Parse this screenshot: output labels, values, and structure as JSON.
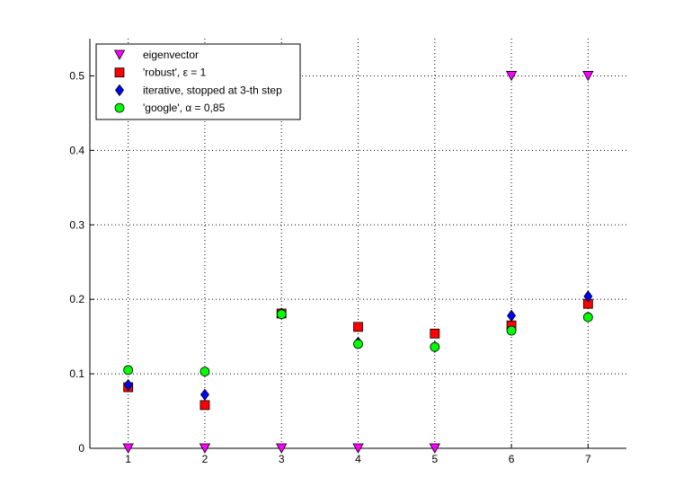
{
  "chart_data": {
    "type": "scatter",
    "title": "",
    "xlabel": "",
    "ylabel": "",
    "x": [
      1,
      2,
      3,
      4,
      5,
      6,
      7
    ],
    "xticks": [
      "1",
      "2",
      "3",
      "4",
      "5",
      "6",
      "7"
    ],
    "xlim": [
      0.5,
      7.5
    ],
    "ylim": [
      0,
      0.55
    ],
    "yticks": [
      "0",
      "0.1",
      "0.2",
      "0.3",
      "0.4",
      "0.5"
    ],
    "grid": true,
    "legend_position": "top-left",
    "series": [
      {
        "name": "eigenvector",
        "marker": "triangle-down",
        "color": "#ff00ff",
        "values": [
          0,
          0,
          0,
          0,
          0,
          0.5,
          0.5
        ]
      },
      {
        "name": "'robust', ε = 1",
        "marker": "square",
        "color": "#ff0000",
        "values": [
          0.082,
          0.058,
          0.181,
          0.163,
          0.154,
          0.165,
          0.194
        ]
      },
      {
        "name": "iterative, stopped at 3-th step",
        "marker": "diamond",
        "color": "#0000ff",
        "values": [
          0.085,
          0.072,
          0.181,
          0.142,
          0.136,
          0.178,
          0.204
        ]
      },
      {
        "name": "'google', α = 0,85",
        "marker": "circle",
        "color": "#00ff00",
        "values": [
          0.105,
          0.103,
          0.18,
          0.14,
          0.136,
          0.158,
          0.176
        ]
      }
    ]
  }
}
